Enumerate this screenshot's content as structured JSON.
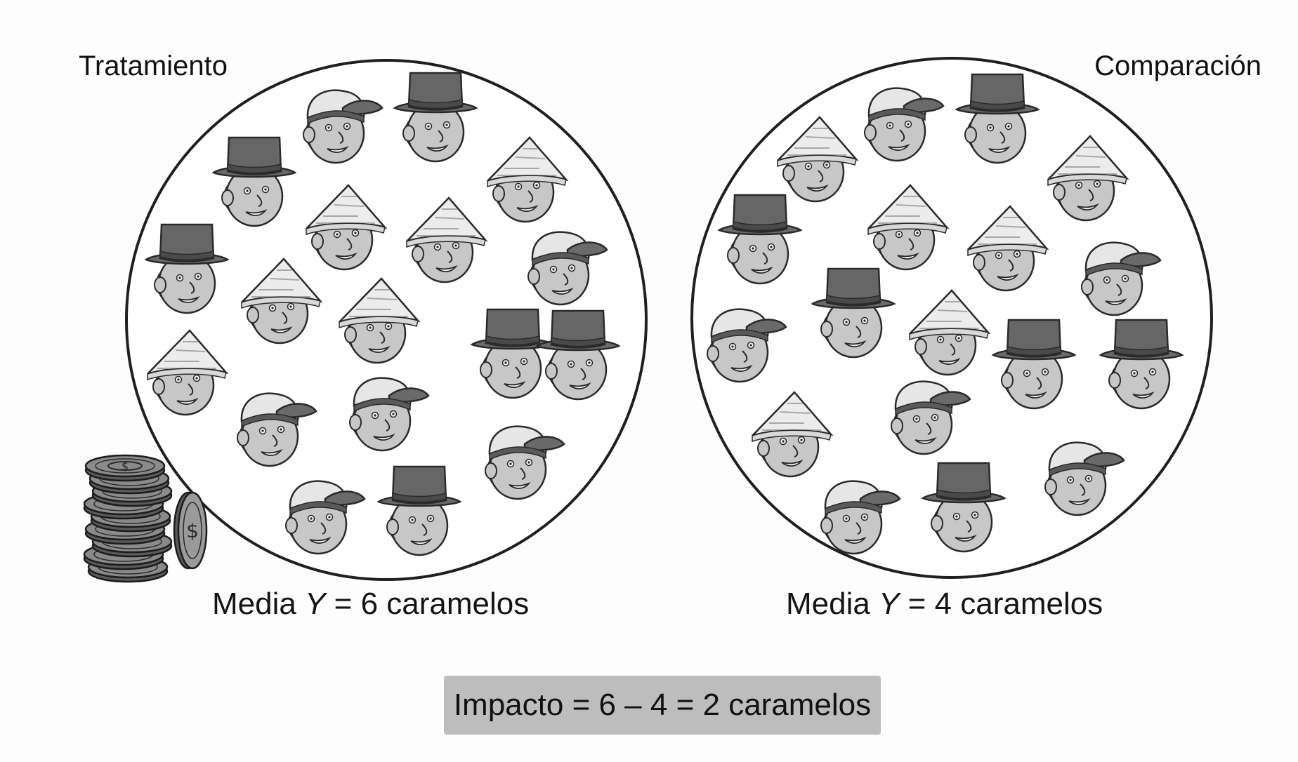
{
  "groups": {
    "treatment": {
      "label": "Tratamiento",
      "mean_prefix": "Media ",
      "mean_var": "Y",
      "mean_value": " = 6 caramelos",
      "people": [
        {
          "hat": "cap"
        },
        {
          "hat": "top"
        },
        {
          "hat": "top"
        },
        {
          "hat": "paper"
        },
        {
          "hat": "paper"
        },
        {
          "hat": "paper"
        },
        {
          "hat": "top"
        },
        {
          "hat": "cap"
        },
        {
          "hat": "paper"
        },
        {
          "hat": "paper"
        },
        {
          "hat": "paper"
        },
        {
          "hat": "top"
        },
        {
          "hat": "top"
        },
        {
          "hat": "cap"
        },
        {
          "hat": "cap"
        },
        {
          "hat": "cap"
        },
        {
          "hat": "cap"
        },
        {
          "hat": "top"
        }
      ]
    },
    "comparison": {
      "label": "Comparación",
      "mean_prefix": "Media ",
      "mean_var": "Y",
      "mean_value": " = 4 caramelos",
      "people": [
        {
          "hat": "cap"
        },
        {
          "hat": "top"
        },
        {
          "hat": "paper"
        },
        {
          "hat": "paper"
        },
        {
          "hat": "top"
        },
        {
          "hat": "paper"
        },
        {
          "hat": "paper"
        },
        {
          "hat": "cap"
        },
        {
          "hat": "top"
        },
        {
          "hat": "paper"
        },
        {
          "hat": "cap"
        },
        {
          "hat": "top"
        },
        {
          "hat": "top"
        },
        {
          "hat": "cap"
        },
        {
          "hat": "paper"
        },
        {
          "hat": "cap"
        },
        {
          "hat": "cap"
        },
        {
          "hat": "top"
        }
      ]
    }
  },
  "impact": {
    "text": "Impacto = 6 – 4 = 2 caramelos"
  },
  "icons": {
    "money": "coin-stack-icon",
    "person": "person-face-icon"
  },
  "colors": {
    "face": "#c7c7c7",
    "hat_dark": "#666666",
    "hat_light": "#e8e8e8",
    "outline": "#2a2a2a",
    "impact_box": "#bdbdbd"
  }
}
